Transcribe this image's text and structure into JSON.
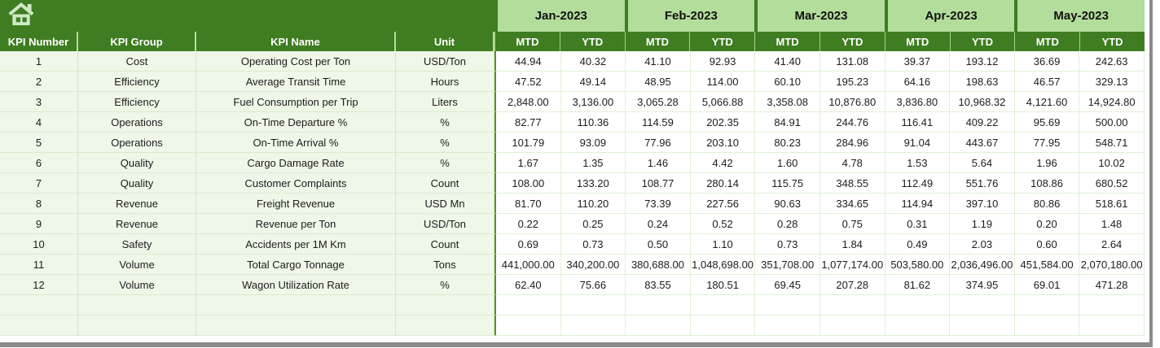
{
  "icons": {
    "home": "home-icon"
  },
  "colors": {
    "header_dark_green": "#3e7d21",
    "month_light_green": "#b2dd9a",
    "label_cell_bg": "#eef7e8",
    "data_cell_bg": "#ffffff",
    "grid_line": "#dff1d5",
    "section_divider": "#4f9427",
    "window_border_gray": "#8a8a8a",
    "header_text": "#ffffff",
    "body_text": "#1c1c1c"
  },
  "table": {
    "label_headers": [
      "KPI Number",
      "KPI Group",
      "KPI Name",
      "Unit"
    ],
    "months": [
      "Jan-2023",
      "Feb-2023",
      "Mar-2023",
      "Apr-2023",
      "May-2023"
    ],
    "sub_headers": [
      "MTD",
      "YTD"
    ],
    "empty_row_count": 2,
    "rows": [
      {
        "kpi_number": "1",
        "kpi_group": "Cost",
        "kpi_name": "Operating Cost per Ton",
        "unit": "USD/Ton",
        "values": [
          "44.94",
          "40.32",
          "41.10",
          "92.93",
          "41.40",
          "131.08",
          "39.37",
          "193.12",
          "36.69",
          "242.63"
        ]
      },
      {
        "kpi_number": "2",
        "kpi_group": "Efficiency",
        "kpi_name": "Average Transit Time",
        "unit": "Hours",
        "values": [
          "47.52",
          "49.14",
          "48.95",
          "114.00",
          "60.10",
          "195.23",
          "64.16",
          "198.63",
          "46.57",
          "329.13"
        ]
      },
      {
        "kpi_number": "3",
        "kpi_group": "Efficiency",
        "kpi_name": "Fuel Consumption per Trip",
        "unit": "Liters",
        "values": [
          "2,848.00",
          "3,136.00",
          "3,065.28",
          "5,066.88",
          "3,358.08",
          "10,876.80",
          "3,836.80",
          "10,968.32",
          "4,121.60",
          "14,924.80"
        ]
      },
      {
        "kpi_number": "4",
        "kpi_group": "Operations",
        "kpi_name": "On-Time Departure %",
        "unit": "%",
        "values": [
          "82.77",
          "110.36",
          "114.59",
          "202.35",
          "84.91",
          "244.76",
          "116.41",
          "409.22",
          "95.69",
          "500.00"
        ]
      },
      {
        "kpi_number": "5",
        "kpi_group": "Operations",
        "kpi_name": "On-Time Arrival %",
        "unit": "%",
        "values": [
          "101.79",
          "93.09",
          "77.96",
          "203.10",
          "80.23",
          "284.96",
          "91.04",
          "443.67",
          "77.95",
          "548.71"
        ]
      },
      {
        "kpi_number": "6",
        "kpi_group": "Quality",
        "kpi_name": "Cargo Damage Rate",
        "unit": "%",
        "values": [
          "1.67",
          "1.35",
          "1.46",
          "4.42",
          "1.60",
          "4.78",
          "1.53",
          "5.64",
          "1.96",
          "10.02"
        ]
      },
      {
        "kpi_number": "7",
        "kpi_group": "Quality",
        "kpi_name": "Customer Complaints",
        "unit": "Count",
        "values": [
          "108.00",
          "133.20",
          "108.77",
          "280.14",
          "115.75",
          "348.55",
          "112.49",
          "551.76",
          "108.86",
          "680.52"
        ]
      },
      {
        "kpi_number": "8",
        "kpi_group": "Revenue",
        "kpi_name": "Freight Revenue",
        "unit": "USD Mn",
        "values": [
          "81.70",
          "110.20",
          "73.39",
          "227.56",
          "90.63",
          "334.65",
          "114.94",
          "397.10",
          "80.86",
          "518.61"
        ]
      },
      {
        "kpi_number": "9",
        "kpi_group": "Revenue",
        "kpi_name": "Revenue per Ton",
        "unit": "USD/Ton",
        "values": [
          "0.22",
          "0.25",
          "0.24",
          "0.52",
          "0.28",
          "0.75",
          "0.31",
          "1.19",
          "0.20",
          "1.48"
        ]
      },
      {
        "kpi_number": "10",
        "kpi_group": "Safety",
        "kpi_name": "Accidents per 1M Km",
        "unit": "Count",
        "values": [
          "0.69",
          "0.73",
          "0.50",
          "1.10",
          "0.73",
          "1.84",
          "0.49",
          "2.03",
          "0.60",
          "2.64"
        ]
      },
      {
        "kpi_number": "11",
        "kpi_group": "Volume",
        "kpi_name": "Total Cargo Tonnage",
        "unit": "Tons",
        "values": [
          "441,000.00",
          "340,200.00",
          "380,688.00",
          "1,048,698.00",
          "351,708.00",
          "1,077,174.00",
          "503,580.00",
          "2,036,496.00",
          "451,584.00",
          "2,070,180.00"
        ]
      },
      {
        "kpi_number": "12",
        "kpi_group": "Volume",
        "kpi_name": "Wagon Utilization Rate",
        "unit": "%",
        "values": [
          "62.40",
          "75.66",
          "83.55",
          "180.51",
          "69.45",
          "207.28",
          "81.62",
          "374.95",
          "69.01",
          "471.28"
        ]
      }
    ]
  }
}
